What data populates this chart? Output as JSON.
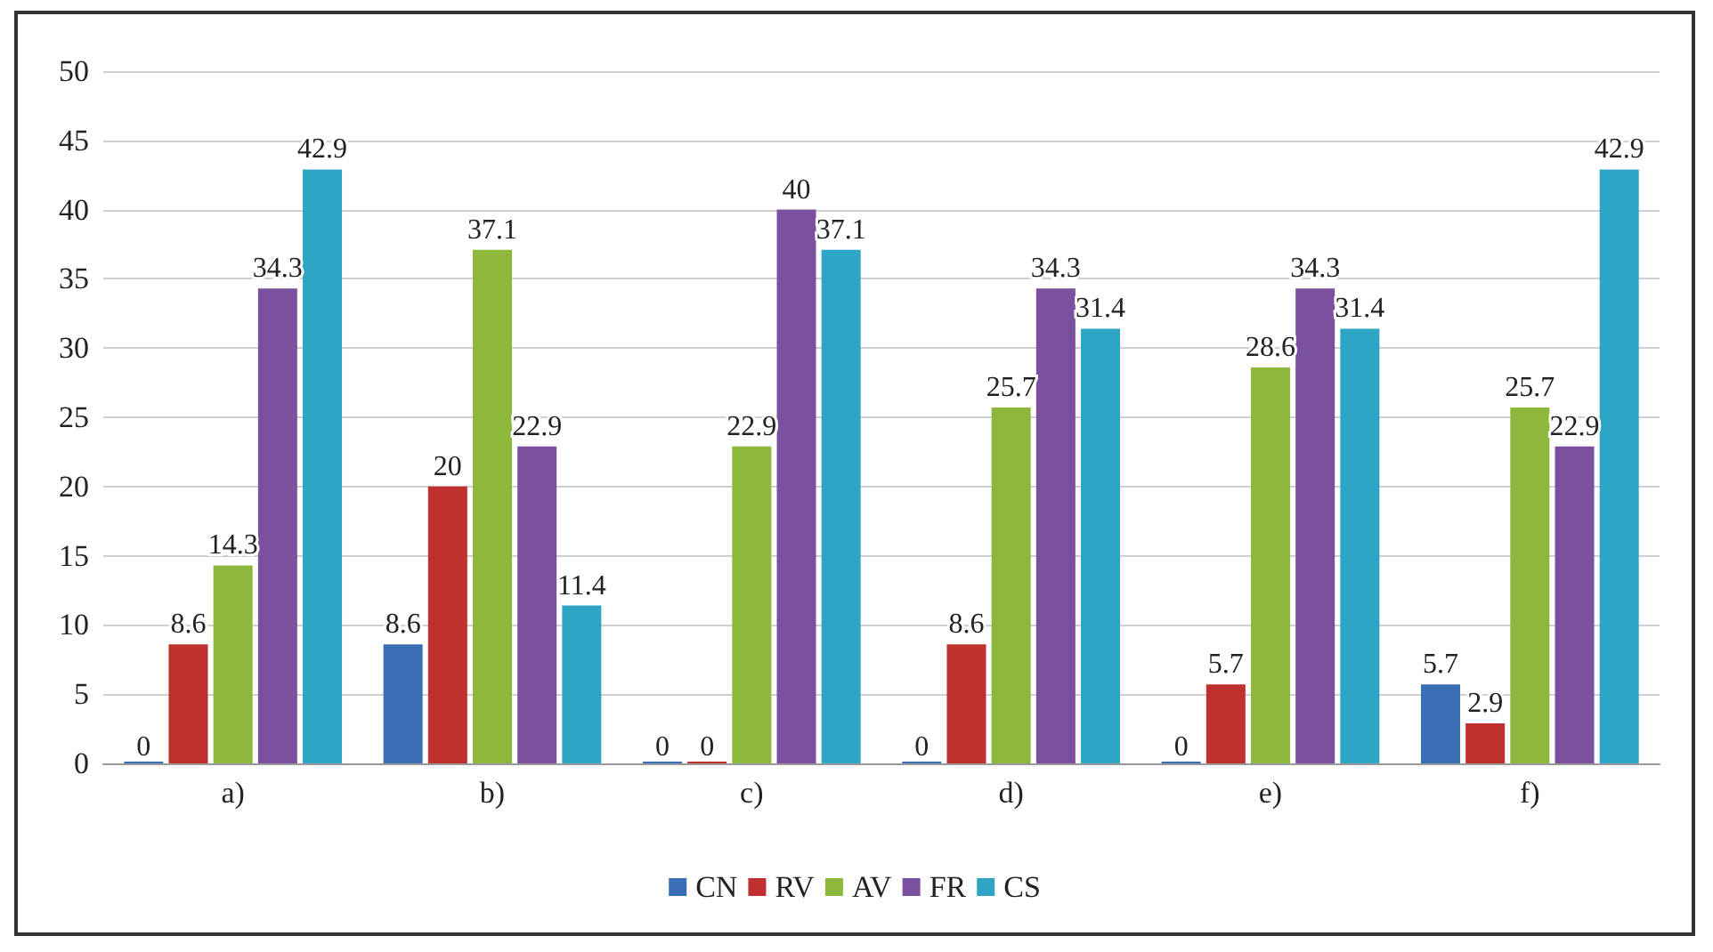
{
  "chart_data": {
    "type": "bar",
    "categories": [
      "a)",
      "b)",
      "c)",
      "d)",
      "e)",
      "f)"
    ],
    "series": [
      {
        "name": "CN",
        "color": "#3a6fb5",
        "values": [
          0,
          8.6,
          0,
          0,
          0,
          5.7
        ]
      },
      {
        "name": "RV",
        "color": "#c0302f",
        "values": [
          8.6,
          20,
          0,
          8.6,
          5.7,
          2.9
        ]
      },
      {
        "name": "AV",
        "color": "#8db83c",
        "values": [
          14.3,
          37.1,
          22.9,
          25.7,
          28.6,
          25.7
        ]
      },
      {
        "name": "FR",
        "color": "#7b509e",
        "values": [
          34.3,
          22.9,
          40,
          34.3,
          34.3,
          22.9
        ]
      },
      {
        "name": "CS",
        "color": "#2fa5c5",
        "values": [
          42.9,
          11.4,
          37.1,
          31.4,
          31.4,
          42.9
        ]
      }
    ],
    "ylim": [
      0,
      50
    ],
    "yticks": [
      0,
      5,
      10,
      15,
      20,
      25,
      30,
      35,
      40,
      45,
      50
    ],
    "grid": "y",
    "legend": "bottom",
    "data_labels": true
  }
}
